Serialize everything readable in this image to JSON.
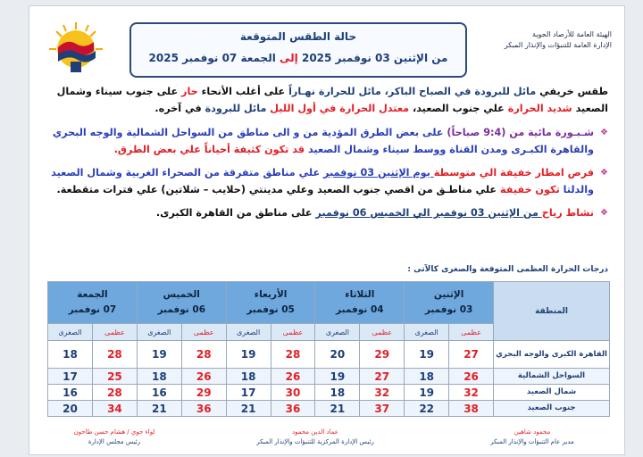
{
  "header": {
    "agency_line1": "الهيئة العامة للأرصاد الجوية",
    "agency_line2": "الإدارة العامة للتنبؤات والإنذار المبكر",
    "title": "حالة الطقس المتوقعة",
    "period_from": "من الإثنين 03 نوفمبر 2025",
    "period_to_word": "إلى",
    "period_to": "الجمعة 07 نوفمبر 2025"
  },
  "intro": {
    "s1": "طقس خريفي",
    "s2": " مائل للبرودة في الصباح الباكر، مائل للحرارة نهـاراً",
    "s3": " على أغلب الأنحاء ",
    "s4": "حار",
    "s5": " على جنوب سيناء وشمال الصعيد ",
    "s6": "شديد الحرارة",
    "s7": " علي جنوب الصعيد، ",
    "s8": "معتدل الحرارة في أول الليل",
    "s9": " مائل للبرودة",
    "s10": " في آخره."
  },
  "bullets": [
    {
      "a": "شـبـورة مائية من (9:4 صباحاً)",
      "b": " على بعض الطرق المؤدية من و الى مناطق من  السواحل الشمالية والوجه البحري والقاهرة الكبـرى  ومدن القناة ووسط سيناء وشمال الصعيد ",
      "c": "قد تكون كثيفة أحياناً علي بعض الطرق."
    },
    {
      "a": "فرص امطار خفيفة الي متوسطة",
      "b": " يوم الإثنين 03 نوفمبر",
      "c": " علي مناطق متفرقة من الصحراء الغربية وشمال الصعيد والدلتا ",
      "d": "تكون خفيفة",
      "e": " علي مناطـق من اقصي جنوب الصعيد وعلي مدينتي (حلايب – شلاتين) علي فترات متقطعة."
    },
    {
      "a": "نشاط رياح",
      "b": " من الإثنين 03 نوفمبر الي الخميس 06 نوفمبر",
      "c": " على مناطق من القاهرة الكبرى."
    }
  ],
  "table": {
    "title": "درجات الحرارة العظمى المتوقعة والصغرى كالآتى :",
    "region_header": "المنطقة",
    "days": [
      {
        "name": "الإثنين",
        "date": "03  نوفمبر"
      },
      {
        "name": "الثلاثاء",
        "date": "04 نوفمبر"
      },
      {
        "name": "الأربعاء",
        "date": "05 نوفمبر"
      },
      {
        "name": "الخميس",
        "date": "06 نوفمبر"
      },
      {
        "name": "الجمعة",
        "date": "07 نوفمبر"
      }
    ],
    "max_label": "عظمى",
    "min_label": "الصغرى",
    "rows": [
      {
        "region": "القاهرة الكبرى والوجه البحري",
        "values": [
          [
            "27",
            "19"
          ],
          [
            "29",
            "20"
          ],
          [
            "28",
            "19"
          ],
          [
            "28",
            "19"
          ],
          [
            "28",
            "18"
          ]
        ]
      },
      {
        "region": "السواحل الشمالية",
        "values": [
          [
            "26",
            "18"
          ],
          [
            "27",
            "19"
          ],
          [
            "26",
            "18"
          ],
          [
            "26",
            "18"
          ],
          [
            "25",
            "17"
          ]
        ]
      },
      {
        "region": "شمال الصعيد",
        "values": [
          [
            "32",
            "19"
          ],
          [
            "32",
            "18"
          ],
          [
            "30",
            "17"
          ],
          [
            "29",
            "16"
          ],
          [
            "28",
            "16"
          ]
        ]
      },
      {
        "region": "جنوب الصعيد",
        "values": [
          [
            "38",
            "22"
          ],
          [
            "37",
            "21"
          ],
          [
            "36",
            "21"
          ],
          [
            "36",
            "21"
          ],
          [
            "34",
            "20"
          ]
        ]
      }
    ]
  },
  "signatures": [
    {
      "name": "محمود شاهين",
      "role": "مدير عام التنبؤات والإنذار المبكر"
    },
    {
      "name": "عماد الدين محمود",
      "role": "رئيس الإدارة المركزية للتنبؤات والإنذار المبكر"
    },
    {
      "name": "لواء جوي / هشام حسن طاحون",
      "role": "رئيس مجلس الإدارة"
    }
  ]
}
